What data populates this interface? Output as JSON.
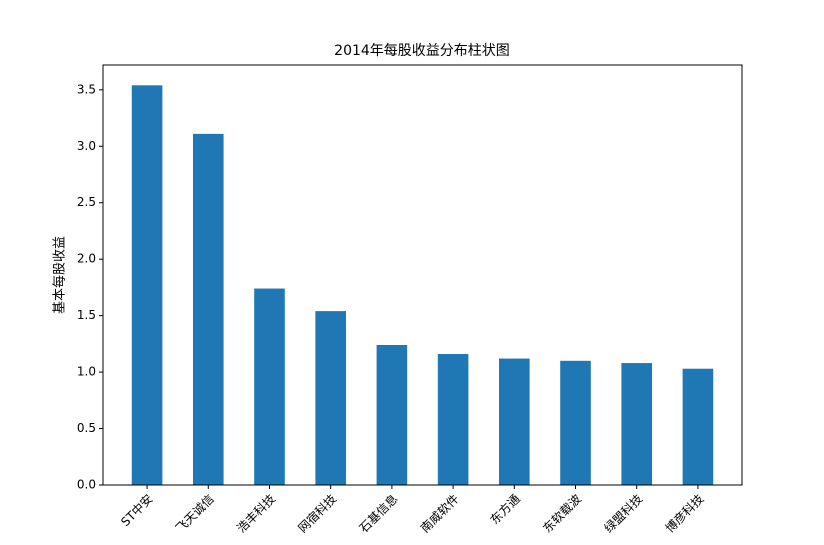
{
  "chart_data": {
    "type": "bar",
    "title": "2014年每股收益分布柱状图",
    "y_label": "基本每股收益",
    "categories": [
      "ST中安",
      "飞天诚信",
      "浩丰科技",
      "网宿科技",
      "石基信息",
      "南威软件",
      "东方通",
      "东软载波",
      "绿盟科技",
      "博彦科技"
    ],
    "values": [
      3.54,
      3.11,
      1.74,
      1.54,
      1.24,
      1.16,
      1.12,
      1.1,
      1.08,
      1.03
    ],
    "color": "#1f77b4",
    "ylim": [
      0,
      3.72
    ],
    "yticks": [
      {
        "value": 0,
        "label": "0.0"
      },
      {
        "value": 0.5,
        "label": "0.5"
      },
      {
        "value": 1,
        "label": "1.0"
      },
      {
        "value": 1.5,
        "label": "1.5"
      },
      {
        "value": 2,
        "label": "2.0"
      },
      {
        "value": 2.5,
        "label": "2.5"
      },
      {
        "value": 3,
        "label": "3.0"
      },
      {
        "value": 3.5,
        "label": "3.5"
      }
    ],
    "grid": false
  }
}
